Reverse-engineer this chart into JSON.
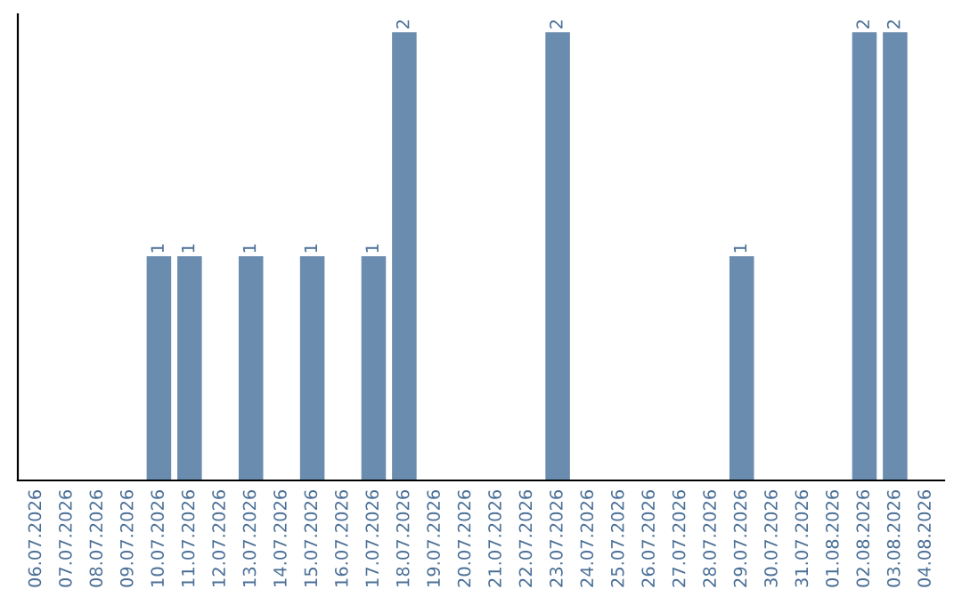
{
  "chart_data": {
    "type": "bar",
    "categories": [
      "06.07.2026",
      "07.07.2026",
      "08.07.2026",
      "09.07.2026",
      "10.07.2026",
      "11.07.2026",
      "12.07.2026",
      "13.07.2026",
      "14.07.2026",
      "15.07.2026",
      "16.07.2026",
      "17.07.2026",
      "18.07.2026",
      "19.07.2026",
      "20.07.2026",
      "21.07.2026",
      "22.07.2026",
      "23.07.2026",
      "24.07.2026",
      "25.07.2026",
      "26.07.2026",
      "27.07.2026",
      "28.07.2026",
      "29.07.2026",
      "30.07.2026",
      "31.07.2026",
      "01.08.2026",
      "02.08.2026",
      "03.08.2026",
      "04.08.2026"
    ],
    "values": [
      0,
      0,
      0,
      0,
      1,
      1,
      0,
      1,
      0,
      1,
      0,
      1,
      2,
      0,
      0,
      0,
      0,
      2,
      0,
      0,
      0,
      0,
      0,
      1,
      0,
      0,
      0,
      2,
      2,
      0
    ],
    "value_labels": [
      null,
      null,
      null,
      null,
      "1",
      "1",
      null,
      "1",
      null,
      "1",
      null,
      "1",
      "2",
      null,
      null,
      null,
      null,
      "2",
      null,
      null,
      null,
      null,
      null,
      "1",
      null,
      null,
      null,
      "2",
      "2",
      null
    ],
    "color": "#6a8caf",
    "ylim": [
      0,
      2.08
    ],
    "tick_labels": "x",
    "grid": false
  }
}
